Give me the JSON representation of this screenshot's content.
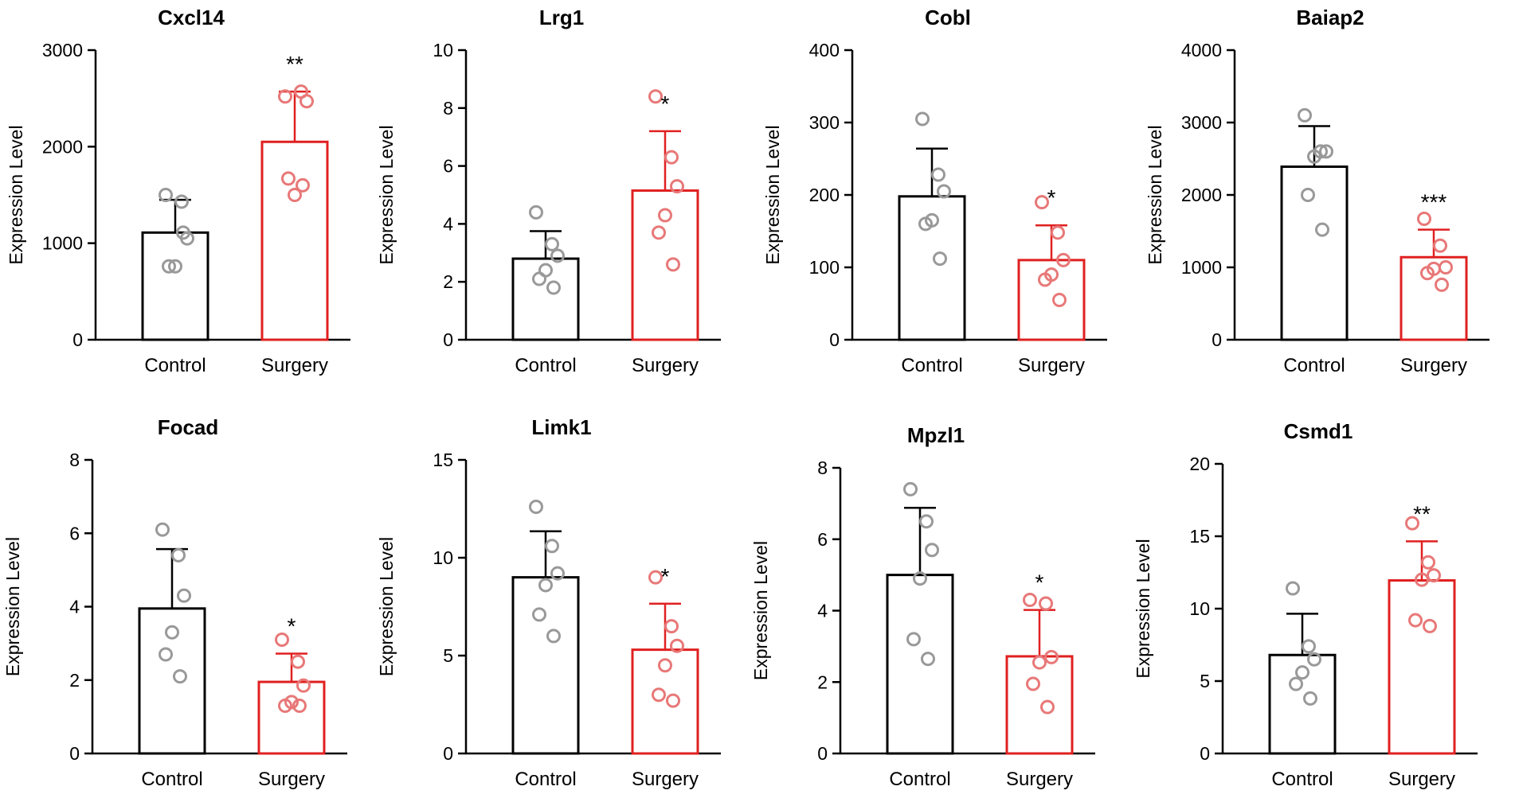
{
  "chart_data": [
    {
      "type": "bar",
      "title": "Cxcl14",
      "ylabel": "Expression Level",
      "categories": [
        "Control",
        "Surgery"
      ],
      "ylim": [
        0,
        3000
      ],
      "yticks": [
        0,
        1000,
        2000,
        3000
      ],
      "series": [
        {
          "name": "Control",
          "color": "#000000",
          "point_color": "#999999",
          "mean": 1110,
          "error": 340,
          "points": [
            1500,
            1430,
            1050,
            760,
            760,
            1110
          ]
        },
        {
          "name": "Surgery",
          "color": "#e02020",
          "point_color": "#e87878",
          "mean": 2050,
          "error": 520,
          "points": [
            2520,
            2570,
            2470,
            1500,
            1670,
            1600
          ]
        }
      ],
      "significance": "**"
    },
    {
      "type": "bar",
      "title": "Lrg1",
      "ylabel": "Expression Level",
      "categories": [
        "Control",
        "Surgery"
      ],
      "ylim": [
        0,
        10
      ],
      "yticks": [
        0,
        2,
        4,
        6,
        8,
        10
      ],
      "series": [
        {
          "name": "Control",
          "color": "#000000",
          "point_color": "#999999",
          "mean": 2.8,
          "error": 0.95,
          "points": [
            4.4,
            3.3,
            2.9,
            2.4,
            2.1,
            1.8
          ]
        },
        {
          "name": "Surgery",
          "color": "#e02020",
          "point_color": "#e87878",
          "mean": 5.15,
          "error": 2.05,
          "points": [
            8.4,
            6.3,
            5.3,
            4.3,
            3.7,
            2.6
          ]
        }
      ],
      "significance": "*"
    },
    {
      "type": "bar",
      "title": "Cobl",
      "ylabel": "Expression Level",
      "categories": [
        "Control",
        "Surgery"
      ],
      "ylim": [
        0,
        400
      ],
      "yticks": [
        0,
        100,
        200,
        300,
        400
      ],
      "series": [
        {
          "name": "Control",
          "color": "#000000",
          "point_color": "#999999",
          "mean": 198,
          "error": 66,
          "points": [
            305,
            228,
            205,
            165,
            160,
            112
          ]
        },
        {
          "name": "Surgery",
          "color": "#e02020",
          "point_color": "#e87878",
          "mean": 110,
          "error": 48,
          "points": [
            190,
            148,
            110,
            90,
            83,
            55
          ]
        }
      ],
      "significance": "*"
    },
    {
      "type": "bar",
      "title": "Baiap2",
      "ylabel": "Expression Level",
      "categories": [
        "Control",
        "Surgery"
      ],
      "ylim": [
        0,
        4000
      ],
      "yticks": [
        0,
        1000,
        2000,
        3000,
        4000
      ],
      "series": [
        {
          "name": "Control",
          "color": "#000000",
          "point_color": "#999999",
          "mean": 2390,
          "error": 560,
          "points": [
            3100,
            2600,
            2600,
            2530,
            2000,
            1520
          ]
        },
        {
          "name": "Surgery",
          "color": "#e02020",
          "point_color": "#e87878",
          "mean": 1140,
          "error": 380,
          "points": [
            1670,
            1300,
            1000,
            980,
            920,
            760
          ]
        }
      ],
      "significance": "***"
    },
    {
      "type": "bar",
      "title": "Focad",
      "ylabel": "Expression Level",
      "categories": [
        "Control",
        "Surgery"
      ],
      "ylim": [
        0,
        8
      ],
      "yticks": [
        0,
        2,
        4,
        6,
        8
      ],
      "series": [
        {
          "name": "Control",
          "color": "#000000",
          "point_color": "#999999",
          "mean": 3.95,
          "error": 1.62,
          "points": [
            6.1,
            5.4,
            4.3,
            3.3,
            2.7,
            2.1
          ]
        },
        {
          "name": "Surgery",
          "color": "#e02020",
          "point_color": "#e87878",
          "mean": 1.95,
          "error": 0.77,
          "points": [
            3.1,
            2.5,
            1.85,
            1.4,
            1.3,
            1.3
          ]
        }
      ],
      "significance": "*"
    },
    {
      "type": "bar",
      "title": "Limk1",
      "ylabel": "Expression Level",
      "categories": [
        "Control",
        "Surgery"
      ],
      "ylim": [
        0,
        15
      ],
      "yticks": [
        0,
        5,
        10,
        15
      ],
      "series": [
        {
          "name": "Control",
          "color": "#000000",
          "point_color": "#999999",
          "mean": 9.0,
          "error": 2.35,
          "points": [
            12.6,
            10.6,
            9.2,
            8.6,
            7.1,
            6.0
          ]
        },
        {
          "name": "Surgery",
          "color": "#e02020",
          "point_color": "#e87878",
          "mean": 5.3,
          "error": 2.35,
          "points": [
            9.0,
            6.5,
            5.5,
            4.5,
            3.0,
            2.7
          ]
        }
      ],
      "significance": "*"
    },
    {
      "type": "bar",
      "title": "Mpzl1",
      "ylabel": "Expression Level",
      "categories": [
        "Control",
        "Surgery"
      ],
      "ylim": [
        0,
        8
      ],
      "yticks": [
        0,
        2,
        4,
        6,
        8
      ],
      "series": [
        {
          "name": "Control",
          "color": "#000000",
          "point_color": "#999999",
          "mean": 5.0,
          "error": 1.88,
          "points": [
            7.4,
            6.5,
            5.7,
            4.9,
            3.2,
            2.65
          ]
        },
        {
          "name": "Surgery",
          "color": "#e02020",
          "point_color": "#e87878",
          "mean": 2.72,
          "error": 1.3,
          "points": [
            4.3,
            4.2,
            2.7,
            2.55,
            1.95,
            1.3
          ]
        }
      ],
      "significance": "*"
    },
    {
      "type": "bar",
      "title": "Csmd1",
      "ylabel": "Expression Level",
      "categories": [
        "Control",
        "Surgery"
      ],
      "ylim": [
        0,
        20
      ],
      "yticks": [
        0,
        5,
        10,
        15,
        20
      ],
      "series": [
        {
          "name": "Control",
          "color": "#000000",
          "point_color": "#999999",
          "mean": 6.8,
          "error": 2.85,
          "points": [
            11.4,
            7.4,
            6.5,
            5.6,
            4.8,
            3.8
          ]
        },
        {
          "name": "Surgery",
          "color": "#e02020",
          "point_color": "#e87878",
          "mean": 11.95,
          "error": 2.7,
          "points": [
            15.9,
            13.2,
            12.3,
            12.0,
            9.2,
            8.8
          ]
        }
      ],
      "significance": "**"
    }
  ]
}
